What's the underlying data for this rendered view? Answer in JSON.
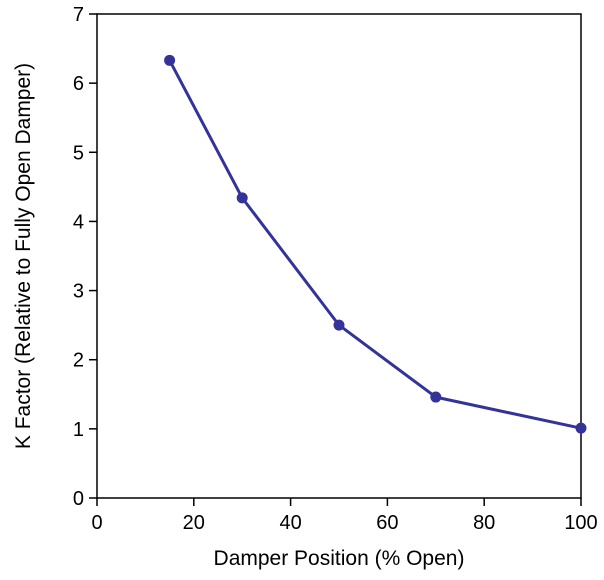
{
  "chart_data": {
    "type": "line",
    "title": "",
    "xlabel": "Damper Position (% Open)",
    "ylabel": "K Factor (Relative to Fully Open Damper)",
    "xlim": [
      0,
      100
    ],
    "ylim": [
      0,
      7
    ],
    "xticks": [
      0,
      20,
      40,
      60,
      80,
      100
    ],
    "yticks": [
      0,
      1,
      2,
      3,
      4,
      5,
      6,
      7
    ],
    "grid": false,
    "legend": "none",
    "series": [
      {
        "color": "#33339a",
        "x": [
          15,
          30,
          50,
          70,
          100
        ],
        "y": [
          6.33,
          4.34,
          2.5,
          1.46,
          1.01
        ]
      }
    ]
  }
}
